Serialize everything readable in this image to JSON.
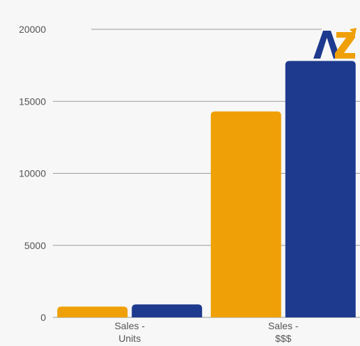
{
  "chart_data": {
    "type": "bar",
    "title": "",
    "xlabel": "",
    "ylabel": "",
    "ylim": [
      0,
      20000
    ],
    "yticks": [
      0,
      5000,
      10000,
      15000,
      20000
    ],
    "categories": [
      [
        "Sales -",
        "Units"
      ],
      [
        "Sales -",
        "$$$"
      ]
    ],
    "series": [
      {
        "color": "#EFA006",
        "values": [
          750,
          14300
        ]
      },
      {
        "color": "#1E3A8E",
        "values": [
          900,
          17800
        ]
      }
    ],
    "grid": true,
    "legend": "none"
  },
  "logo": {
    "name": "az-logo",
    "text": "AZ",
    "colors": {
      "a": "#1E3A8E",
      "z": "#EFA006"
    }
  }
}
